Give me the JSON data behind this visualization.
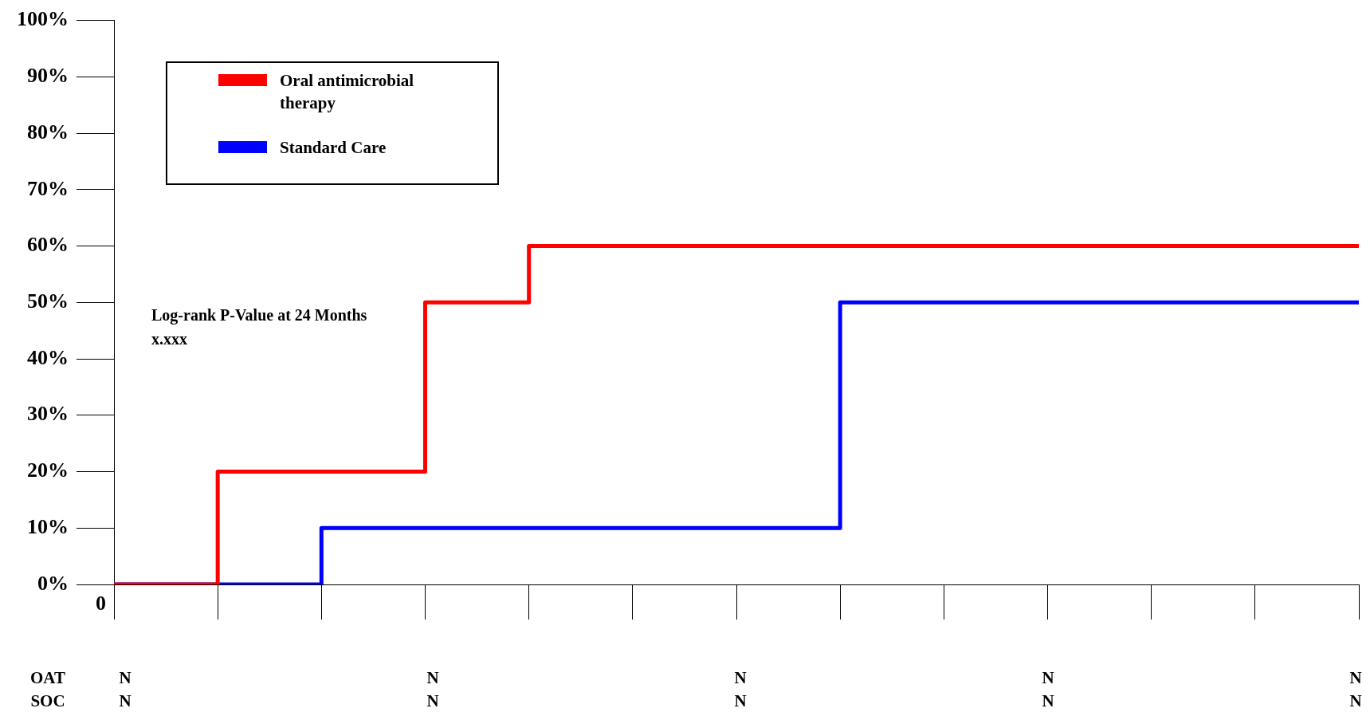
{
  "chart_data": {
    "type": "step",
    "categories": [
      "0",
      null,
      null,
      null,
      null,
      null,
      null,
      null,
      null,
      null,
      null,
      null,
      null
    ],
    "ylim": [
      0,
      100
    ],
    "yticks": [
      {
        "value": 0,
        "label": "0%"
      },
      {
        "value": 10,
        "label": "10%"
      },
      {
        "value": 20,
        "label": "20%"
      },
      {
        "value": 30,
        "label": "30%"
      },
      {
        "value": 40,
        "label": "40%"
      },
      {
        "value": 50,
        "label": "50%"
      },
      {
        "value": 60,
        "label": "60%"
      },
      {
        "value": 70,
        "label": "70%"
      },
      {
        "value": 80,
        "label": "80%"
      },
      {
        "value": 90,
        "label": "90%"
      },
      {
        "value": 100,
        "label": "100%"
      }
    ],
    "series": [
      {
        "name": "Oral antimicrobial therapy",
        "color": "#ff0000",
        "values": [
          0,
          20,
          20,
          50,
          60,
          60,
          60,
          60,
          60,
          60,
          60,
          60,
          60
        ]
      },
      {
        "name": "Standard Care",
        "color": "#0000ff",
        "values": [
          0,
          0,
          10,
          10,
          10,
          10,
          10,
          50,
          50,
          50,
          50,
          50,
          50
        ]
      }
    ],
    "legend": "top left",
    "annotations": [
      "Log-rank P-Value at 24 Months\nx.xxx",
      "OAT",
      {
        "text": "N"
      },
      {
        "text": "N"
      },
      {
        "text": "N"
      },
      {
        "text": "N"
      },
      {
        "text": "N"
      },
      "SOC",
      {
        "text": "N"
      },
      {
        "text": "N"
      },
      {
        "text": "N"
      },
      {
        "text": "N"
      },
      {
        "text": "N"
      }
    ]
  }
}
